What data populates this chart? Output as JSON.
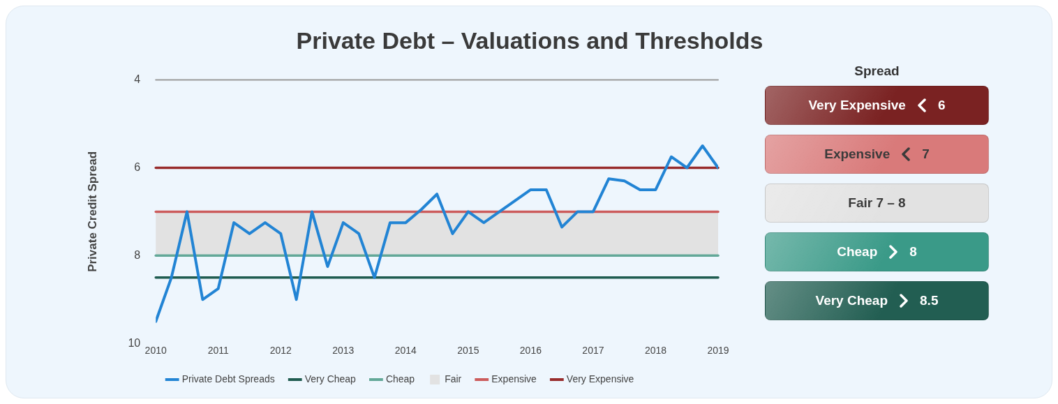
{
  "chart_data": [
    {
      "type": "line",
      "title": "Private Debt – Valuations and Thresholds",
      "ylabel": "Private Credit Spread",
      "x": [
        2010,
        2010.25,
        2010.5,
        2010.75,
        2011,
        2011.25,
        2011.5,
        2011.75,
        2012,
        2012.25,
        2012.5,
        2012.75,
        2013,
        2013.25,
        2013.5,
        2013.75,
        2014,
        2014.25,
        2014.5,
        2014.75,
        2015,
        2015.25,
        2015.5,
        2015.75,
        2016,
        2016.25,
        2016.5,
        2016.75,
        2017,
        2017.25,
        2017.5,
        2017.75,
        2018,
        2018.25,
        2018.5,
        2018.75,
        2019
      ],
      "series": [
        {
          "name": "Private Debt Spreads",
          "color": "#2284d4",
          "values": [
            9.5,
            8.5,
            7,
            9,
            8.75,
            7.25,
            7.5,
            7.25,
            7.5,
            9,
            7,
            8.25,
            7.25,
            7.5,
            8.5,
            7.25,
            7.25,
            6.95,
            6.6,
            7.5,
            7,
            7.25,
            7,
            6.75,
            6.5,
            6.5,
            7.35,
            7,
            7,
            6.25,
            6.3,
            6.5,
            6.5,
            5.75,
            6,
            5.5,
            6
          ]
        }
      ],
      "xlim": [
        2010,
        2019
      ],
      "xticks": [
        2010,
        2011,
        2012,
        2013,
        2014,
        2015,
        2016,
        2017,
        2018,
        2019
      ],
      "ylim": [
        10,
        4
      ],
      "yticks": [
        4,
        6,
        8,
        10
      ],
      "legend": "bottom",
      "marker": "none",
      "line_style": "solid",
      "ref_lines": [
        {
          "axis": "y",
          "value": 4,
          "color": "#9a9a9a"
        },
        {
          "axis": "y",
          "value": 8.5,
          "label": "Very Cheap",
          "color": "#1f5c50"
        },
        {
          "axis": "y",
          "value": 8,
          "label": "Cheap",
          "color": "#62a898"
        },
        {
          "axis": "y",
          "value": 7,
          "label": "Expensive",
          "color": "#cc5c5c"
        },
        {
          "axis": "y",
          "value": 6,
          "label": "Very Expensive",
          "color": "#982c2c"
        }
      ],
      "bands": [
        {
          "axis": "y",
          "from": 8,
          "to": 7,
          "label": "Fair",
          "color": "#e2e2e2"
        }
      ]
    },
    {
      "type": "other",
      "title": "Spread",
      "categories": [
        "Very Expensive",
        "Expensive",
        "Fair 7 – 8",
        "Cheap",
        "Very Cheap"
      ],
      "value_labels": [
        "6",
        "7",
        null,
        "8",
        "8.5"
      ],
      "colors": [
        "#7a2222",
        "#d97a7a",
        "#e2e2e2",
        "#3a9a88",
        "#225e52"
      ]
    }
  ]
}
